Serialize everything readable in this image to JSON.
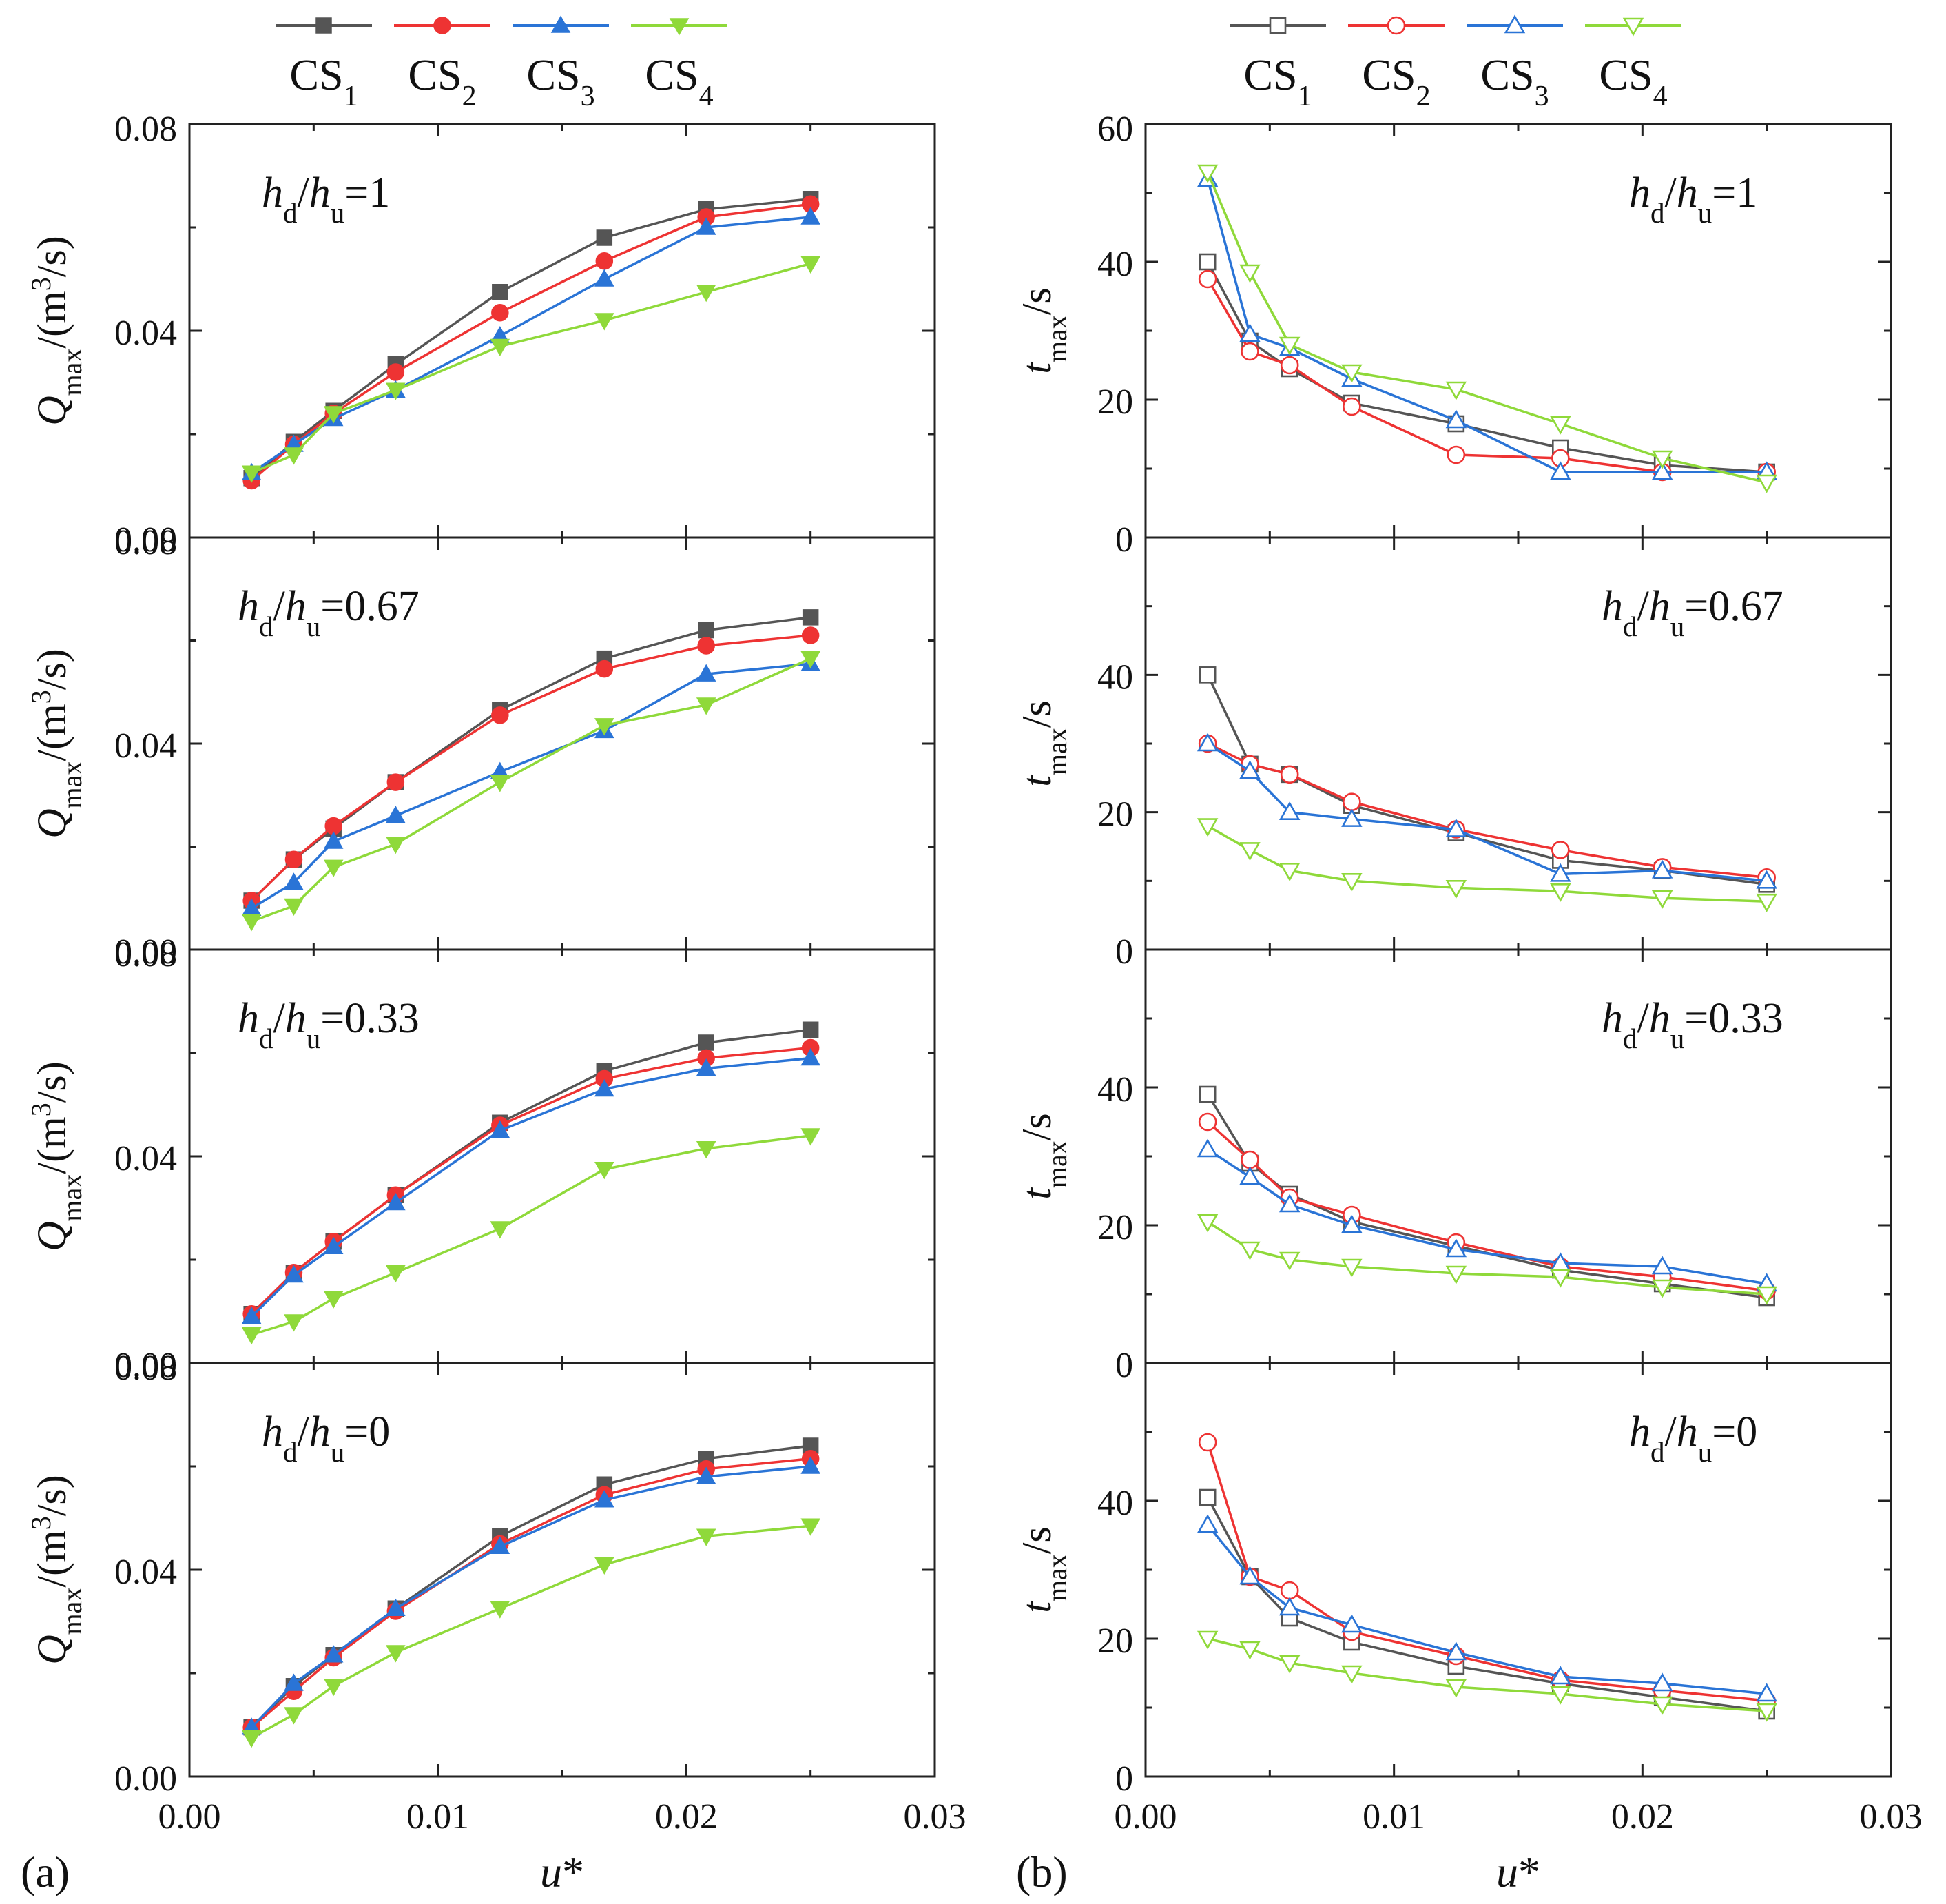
{
  "figure": {
    "panel_labels": [
      "(a)",
      "(b)"
    ],
    "xlabel": "u*",
    "legend_entries": [
      "CS1",
      "CS2",
      "CS3",
      "CS4"
    ],
    "colors": {
      "CS1": "#555555",
      "CS2": "#ee3333",
      "CS3": "#2a74d6",
      "CS4": "#8fd93a"
    },
    "condition_labels": [
      "hd/hu=1",
      "hd/hu=0.67",
      "hd/hu=0.33",
      "hd/hu=0"
    ],
    "ylabel_a": "Qmax/(m3/s)",
    "ylabel_b": "tmax/s"
  },
  "chart_data": [
    {
      "panel": "(a)",
      "type": "line",
      "ylabel": "Qmax/(m3/s)",
      "xlabel": "u*",
      "xlim": [
        0,
        0.03
      ],
      "xticks": [
        "0.00",
        "0.01",
        "0.02",
        "0.03"
      ],
      "ylim": [
        0,
        0.08
      ],
      "yticks": [
        "0.00",
        "0.04",
        "0.08"
      ],
      "x": [
        0.0025,
        0.0042,
        0.0058,
        0.0083,
        0.0125,
        0.0167,
        0.0208,
        0.025
      ],
      "subplots": [
        {
          "label": "hd/hu=1",
          "series": [
            {
              "name": "CS1",
              "values": [
                0.0115,
                0.0185,
                0.0245,
                0.0335,
                0.0475,
                0.058,
                0.0635,
                0.0655
              ]
            },
            {
              "name": "CS2",
              "values": [
                0.011,
                0.018,
                0.024,
                0.032,
                0.0435,
                0.0535,
                0.062,
                0.0645
              ]
            },
            {
              "name": "CS3",
              "values": [
                0.0125,
                0.018,
                0.023,
                0.0285,
                0.039,
                0.05,
                0.06,
                0.062
              ]
            },
            {
              "name": "CS4",
              "values": [
                0.0125,
                0.016,
                0.024,
                0.0285,
                0.037,
                0.042,
                0.0475,
                0.053
              ]
            }
          ]
        },
        {
          "label": "hd/hu=0.67",
          "series": [
            {
              "name": "CS1",
              "values": [
                0.0095,
                0.0175,
                0.0235,
                0.0325,
                0.0465,
                0.0565,
                0.062,
                0.0645
              ]
            },
            {
              "name": "CS2",
              "values": [
                0.0095,
                0.0175,
                0.024,
                0.0325,
                0.0455,
                0.0545,
                0.059,
                0.061
              ]
            },
            {
              "name": "CS3",
              "values": [
                0.008,
                0.013,
                0.021,
                0.026,
                0.0345,
                0.0425,
                0.0535,
                0.0555
              ]
            },
            {
              "name": "CS4",
              "values": [
                0.0055,
                0.0085,
                0.016,
                0.0205,
                0.0325,
                0.0435,
                0.0475,
                0.0565
              ]
            }
          ]
        },
        {
          "label": "hd/hu=0.33",
          "series": [
            {
              "name": "CS1",
              "values": [
                0.0095,
                0.0175,
                0.0235,
                0.0325,
                0.0465,
                0.0565,
                0.062,
                0.0645
              ]
            },
            {
              "name": "CS2",
              "values": [
                0.0095,
                0.0175,
                0.0235,
                0.0325,
                0.046,
                0.055,
                0.059,
                0.061
              ]
            },
            {
              "name": "CS3",
              "values": [
                0.009,
                0.017,
                0.0225,
                0.031,
                0.045,
                0.053,
                0.057,
                0.059
              ]
            },
            {
              "name": "CS4",
              "values": [
                0.0055,
                0.008,
                0.0125,
                0.0175,
                0.026,
                0.0375,
                0.0415,
                0.044
              ]
            }
          ]
        },
        {
          "label": "hd/hu=0",
          "series": [
            {
              "name": "CS1",
              "values": [
                0.0095,
                0.0175,
                0.0235,
                0.0325,
                0.0465,
                0.0565,
                0.0615,
                0.064
              ]
            },
            {
              "name": "CS2",
              "values": [
                0.0095,
                0.0165,
                0.023,
                0.032,
                0.045,
                0.0545,
                0.0595,
                0.0615
              ]
            },
            {
              "name": "CS3",
              "values": [
                0.0095,
                0.018,
                0.0235,
                0.0325,
                0.0445,
                0.0535,
                0.058,
                0.06
              ]
            },
            {
              "name": "CS4",
              "values": [
                0.0075,
                0.012,
                0.0175,
                0.024,
                0.0325,
                0.041,
                0.0465,
                0.0485
              ]
            }
          ]
        }
      ]
    },
    {
      "panel": "(b)",
      "type": "line",
      "ylabel": "tmax/s",
      "xlabel": "u*",
      "xlim": [
        0,
        0.03
      ],
      "xticks": [
        "0.00",
        "0.01",
        "0.02",
        "0.03"
      ],
      "ylim": [
        0,
        60
      ],
      "yticks_top": [
        "0",
        "20",
        "40",
        "60"
      ],
      "yticks_other": [
        "0",
        "20",
        "40"
      ],
      "x": [
        0.0025,
        0.0042,
        0.0058,
        0.0083,
        0.0125,
        0.0167,
        0.0208,
        0.025
      ],
      "subplots": [
        {
          "label": "hd/hu=1",
          "series": [
            {
              "name": "CS1",
              "values": [
                40,
                28.5,
                24.5,
                19.5,
                16.5,
                13,
                10.5,
                9.5
              ]
            },
            {
              "name": "CS2",
              "values": [
                37.5,
                27,
                25,
                19,
                12,
                11.5,
                9.5,
                9.5
              ]
            },
            {
              "name": "CS3",
              "values": [
                52,
                29.5,
                27.5,
                23,
                17,
                9.5,
                9.5,
                9.5
              ]
            },
            {
              "name": "CS4",
              "values": [
                53,
                38.5,
                28,
                24,
                21.5,
                16.5,
                11.5,
                8
              ]
            }
          ]
        },
        {
          "label": "hd/hu=0.67",
          "series": [
            {
              "name": "CS1",
              "values": [
                40,
                27,
                25.5,
                21,
                17,
                13,
                11.5,
                9.5
              ]
            },
            {
              "name": "CS2",
              "values": [
                30,
                27,
                25.5,
                21.5,
                17.5,
                14.5,
                12,
                10.5
              ]
            },
            {
              "name": "CS3",
              "values": [
                30,
                26,
                20,
                19,
                17.5,
                11,
                11.5,
                10
              ]
            },
            {
              "name": "CS4",
              "values": [
                18,
                14.5,
                11.5,
                10,
                9,
                8.5,
                7.5,
                7
              ]
            }
          ]
        },
        {
          "label": "hd/hu=0.33",
          "series": [
            {
              "name": "CS1",
              "values": [
                39,
                29,
                24.5,
                20.5,
                17,
                13.5,
                11.5,
                9.5
              ]
            },
            {
              "name": "CS2",
              "values": [
                35,
                29.5,
                24,
                21.5,
                17.5,
                14,
                12.5,
                10.5
              ]
            },
            {
              "name": "CS3",
              "values": [
                31,
                27,
                23,
                20,
                16.5,
                14.5,
                14,
                11.5
              ]
            },
            {
              "name": "CS4",
              "values": [
                20.5,
                16.5,
                15,
                14,
                13,
                12.5,
                11,
                10
              ]
            }
          ]
        },
        {
          "label": "hd/hu=0",
          "series": [
            {
              "name": "CS1",
              "values": [
                40.5,
                29,
                23,
                19.5,
                16,
                13.5,
                11.5,
                9.5
              ]
            },
            {
              "name": "CS2",
              "values": [
                48.5,
                29,
                27,
                21,
                17.5,
                14,
                12.5,
                11
              ]
            },
            {
              "name": "CS3",
              "values": [
                36.5,
                29,
                24.5,
                22,
                18,
                14.5,
                13.5,
                12
              ]
            },
            {
              "name": "CS4",
              "values": [
                20,
                18.5,
                16.5,
                15,
                13,
                12,
                10.5,
                9.5
              ]
            }
          ]
        }
      ]
    }
  ]
}
